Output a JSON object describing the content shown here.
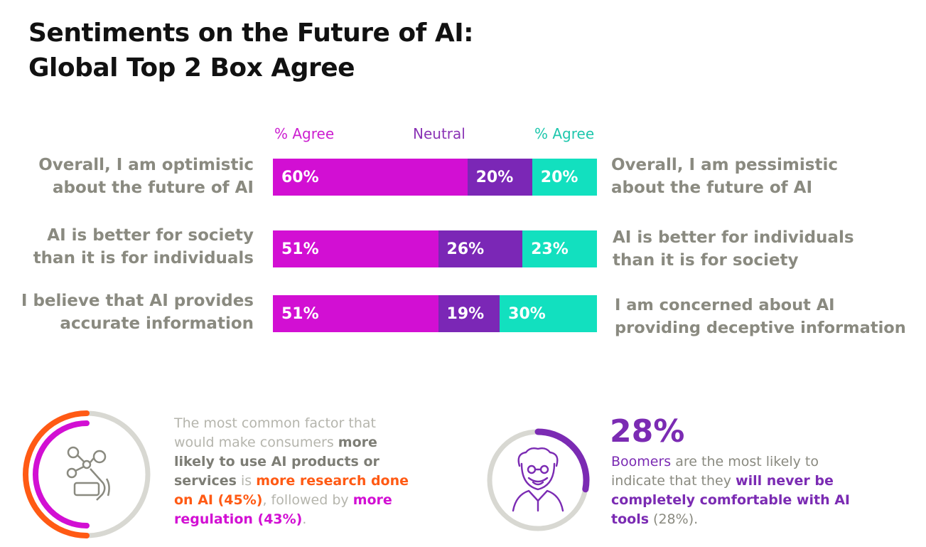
{
  "title_line1": "Sentiments on the Future of AI:",
  "title_line2": "Global Top 2 Box Agree",
  "chart_data": {
    "type": "bar",
    "orientation": "horizontal",
    "stacked": true,
    "headers": [
      "% Agree",
      "Neutral",
      "% Agree"
    ],
    "categories": [
      {
        "left": "Overall, I am optimistic about the future of AI",
        "right": "Overall, I am pessimistic about the future of AI"
      },
      {
        "left": "AI is better for society than it is for individuals",
        "right": "AI is better for individuals than it is for society"
      },
      {
        "left": "I believe that AI provides accurate information",
        "right": "I am concerned about AI providing deceptive information"
      }
    ],
    "series": [
      {
        "values": [
          60,
          51,
          51
        ],
        "color": "#d20fd3"
      },
      {
        "values": [
          20,
          26,
          19
        ],
        "color": "#7b27b6"
      },
      {
        "values": [
          20,
          23,
          30
        ],
        "color": "#12e0bf"
      }
    ],
    "xlim": [
      0,
      100
    ],
    "value_suffix": "%",
    "grid": false,
    "legend": "top"
  },
  "rows": [
    {
      "left_l1": "Overall, I am optimistic",
      "left_l2": "about the future of AI",
      "right_l1": "Overall, I am pessimistic",
      "right_l2": "about the future of AI"
    },
    {
      "left_l1": "AI is better for society",
      "left_l2": "than it is for individuals",
      "right_l1": "AI is better for individuals",
      "right_l2": "than it is for society"
    },
    {
      "left_l1": "I believe that AI provides",
      "left_l2": "accurate information",
      "right_l1": "I am concerned about AI",
      "right_l2": "providing deceptive information"
    }
  ],
  "callout1": {
    "t1": "The most common factor that would make consumers ",
    "t2": "more likely to use AI products or services",
    "t3": " is ",
    "t4": "more research done on AI (45%)",
    "t5": ", followed by ",
    "t6": "more regulation (43%)",
    "t7": ".",
    "icon": "ai-hand-network-icon",
    "ring_color_outer": "#ff5a14",
    "ring_color_inner": "#d20fd3"
  },
  "callout2": {
    "stat": "28%",
    "t1": "Boomers",
    "t2": " are the most likely to indicate that they ",
    "t3": "will never be completely comfortable with AI tools",
    "t4": " (28%)",
    "t5": ".",
    "icon": "elderly-person-icon",
    "ring_value": 0.28,
    "ring_color": "#7b2bb3"
  }
}
